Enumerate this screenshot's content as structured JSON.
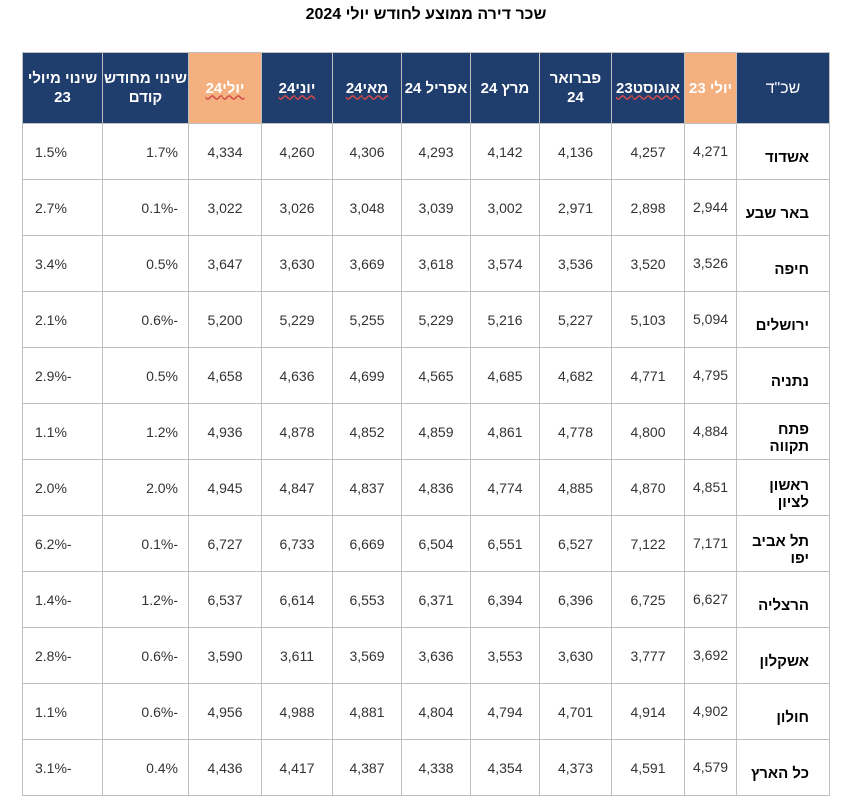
{
  "title": "שכר דירה ממוצע לחודש יולי 2024",
  "headers": {
    "city": "שכ\"ד",
    "jul23": "יולי 23",
    "aug23": "אוגוסט23",
    "feb24": "פברואר 24",
    "mar24": "מרץ 24",
    "apr24": "אפריל 24",
    "may24": "מאי24",
    "jun24": "יוני24",
    "jul24": "יולי24",
    "chg_prev": "שינוי מחודש קודם",
    "chg_jul23": "שינוי מיולי 23"
  },
  "rows": [
    {
      "city": "אשדוד",
      "jul23": "4,271",
      "aug23": "4,257",
      "feb24": "4,136",
      "mar24": "4,142",
      "apr24": "4,293",
      "may24": "4,306",
      "jun24": "4,260",
      "jul24": "4,334",
      "chg_prev": "1.7%",
      "chg_jul23": "1.5%"
    },
    {
      "city": "באר שבע",
      "jul23": "2,944",
      "aug23": "2,898",
      "feb24": "2,971",
      "mar24": "3,002",
      "apr24": "3,039",
      "may24": "3,048",
      "jun24": "3,026",
      "jul24": "3,022",
      "chg_prev": "-0.1%",
      "chg_jul23": "2.7%"
    },
    {
      "city": "חיפה",
      "jul23": "3,526",
      "aug23": "3,520",
      "feb24": "3,536",
      "mar24": "3,574",
      "apr24": "3,618",
      "may24": "3,669",
      "jun24": "3,630",
      "jul24": "3,647",
      "chg_prev": "0.5%",
      "chg_jul23": "3.4%"
    },
    {
      "city": "ירושלים",
      "jul23": "5,094",
      "aug23": "5,103",
      "feb24": "5,227",
      "mar24": "5,216",
      "apr24": "5,229",
      "may24": "5,255",
      "jun24": "5,229",
      "jul24": "5,200",
      "chg_prev": "-0.6%",
      "chg_jul23": "2.1%"
    },
    {
      "city": "נתניה",
      "jul23": "4,795",
      "aug23": "4,771",
      "feb24": "4,682",
      "mar24": "4,685",
      "apr24": "4,565",
      "may24": "4,699",
      "jun24": "4,636",
      "jul24": "4,658",
      "chg_prev": "0.5%",
      "chg_jul23": "-2.9%"
    },
    {
      "city": "פתח תקווה",
      "jul23": "4,884",
      "aug23": "4,800",
      "feb24": "4,778",
      "mar24": "4,861",
      "apr24": "4,859",
      "may24": "4,852",
      "jun24": "4,878",
      "jul24": "4,936",
      "chg_prev": "1.2%",
      "chg_jul23": "1.1%"
    },
    {
      "city": "ראשון לציון",
      "jul23": "4,851",
      "aug23": "4,870",
      "feb24": "4,885",
      "mar24": "4,774",
      "apr24": "4,836",
      "may24": "4,837",
      "jun24": "4,847",
      "jul24": "4,945",
      "chg_prev": "2.0%",
      "chg_jul23": "2.0%"
    },
    {
      "city": "תל אביב יפו",
      "jul23": "7,171",
      "aug23": "7,122",
      "feb24": "6,527",
      "mar24": "6,551",
      "apr24": "6,504",
      "may24": "6,669",
      "jun24": "6,733",
      "jul24": "6,727",
      "chg_prev": "-0.1%",
      "chg_jul23": "-6.2%"
    },
    {
      "city": "הרצליה",
      "jul23": "6,627",
      "aug23": "6,725",
      "feb24": "6,396",
      "mar24": "6,394",
      "apr24": "6,371",
      "may24": "6,553",
      "jun24": "6,614",
      "jul24": "6,537",
      "chg_prev": "-1.2%",
      "chg_jul23": "-1.4%"
    },
    {
      "city": "אשקלון",
      "jul23": "3,692",
      "aug23": "3,777",
      "feb24": "3,630",
      "mar24": "3,553",
      "apr24": "3,636",
      "may24": "3,569",
      "jun24": "3,611",
      "jul24": "3,590",
      "chg_prev": "-0.6%",
      "chg_jul23": "-2.8%"
    },
    {
      "city": "חולון",
      "jul23": "4,902",
      "aug23": "4,914",
      "feb24": "4,701",
      "mar24": "4,794",
      "apr24": "4,804",
      "may24": "4,881",
      "jun24": "4,988",
      "jul24": "4,956",
      "chg_prev": "-0.6%",
      "chg_jul23": "1.1%"
    },
    {
      "city": "כל הארץ",
      "jul23": "4,579",
      "aug23": "4,591",
      "feb24": "4,373",
      "mar24": "4,354",
      "apr24": "4,338",
      "may24": "4,387",
      "jun24": "4,417",
      "jul24": "4,436",
      "chg_prev": "0.4%",
      "chg_jul23": "-3.1%"
    }
  ]
}
